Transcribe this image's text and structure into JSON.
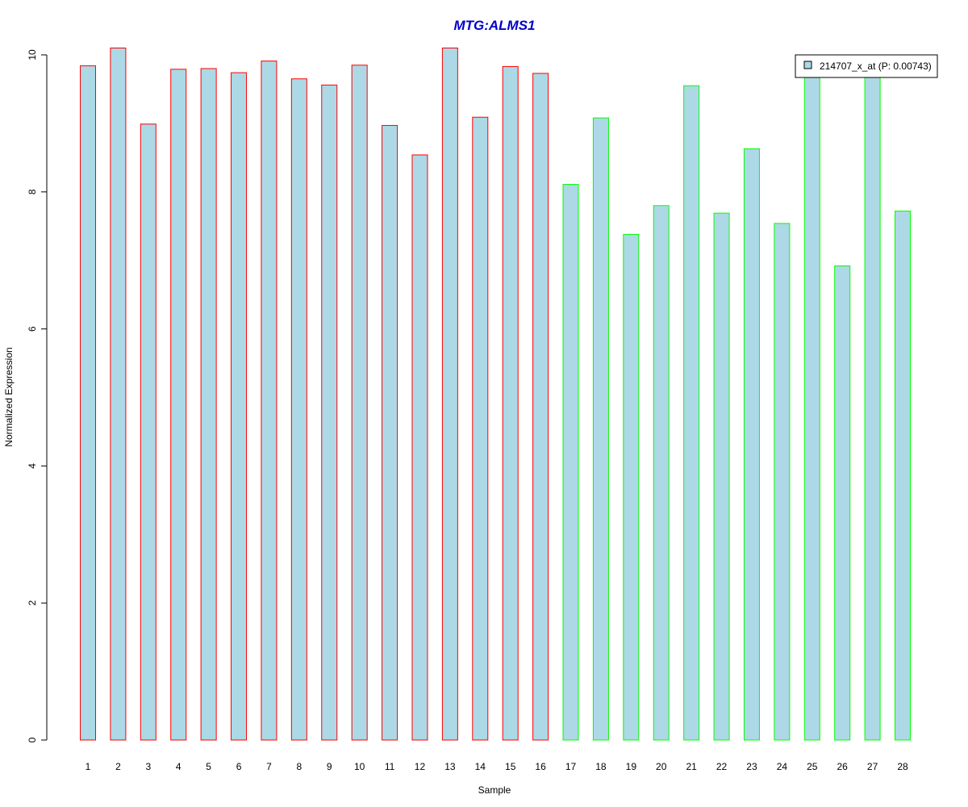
{
  "chart_data": {
    "type": "bar",
    "title": "MTG:ALMS1",
    "title_color": "#0000cc",
    "xlabel": "Sample",
    "ylabel": "Normalized Expression",
    "ylim": [
      0,
      10
    ],
    "yticks": [
      0,
      2,
      4,
      6,
      8,
      10
    ],
    "categories": [
      "1",
      "2",
      "3",
      "4",
      "5",
      "6",
      "7",
      "8",
      "9",
      "10",
      "11",
      "12",
      "13",
      "14",
      "15",
      "16",
      "17",
      "18",
      "19",
      "20",
      "21",
      "22",
      "23",
      "24",
      "25",
      "26",
      "27",
      "28"
    ],
    "values": [
      9.84,
      10.1,
      8.99,
      9.79,
      9.8,
      9.74,
      9.91,
      9.65,
      9.56,
      9.85,
      8.97,
      8.54,
      10.1,
      9.09,
      9.83,
      9.73,
      8.11,
      9.08,
      7.38,
      7.8,
      9.55,
      7.69,
      8.63,
      7.54,
      9.9,
      6.92,
      9.9,
      7.72
    ],
    "fill_color": "#add8e6",
    "group_border_colors": [
      "#ff0000",
      "#ff0000",
      "#ff0000",
      "#ff0000",
      "#ff0000",
      "#ff0000",
      "#ff0000",
      "#ff0000",
      "#ff0000",
      "#ff0000",
      "#ff0000",
      "#ff0000",
      "#ff0000",
      "#ff0000",
      "#ff0000",
      "#ff0000",
      "#00ff00",
      "#00ff00",
      "#00ff00",
      "#00ff00",
      "#00ff00",
      "#00ff00",
      "#00ff00",
      "#00ff00",
      "#00ff00",
      "#00ff00",
      "#00ff00",
      "#00ff00"
    ],
    "legend": {
      "position": "top-right",
      "entries": [
        {
          "label": "214707_x_at (P: 0.00743)",
          "color": "#add8e6"
        }
      ]
    }
  }
}
